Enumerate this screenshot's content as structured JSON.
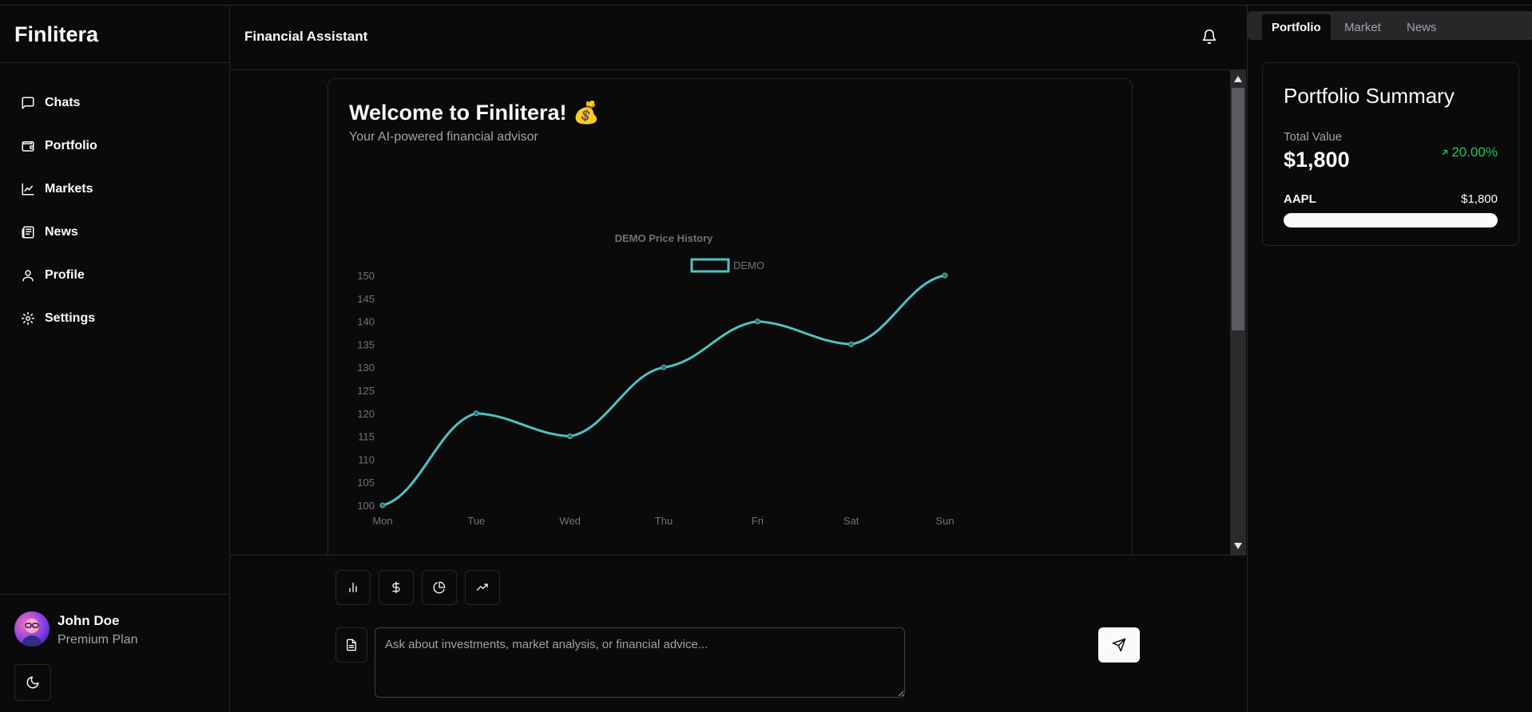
{
  "app": {
    "brand": "Finlitera"
  },
  "sidebar": {
    "items": [
      {
        "label": "Chats",
        "icon": "chat-icon"
      },
      {
        "label": "Portfolio",
        "icon": "wallet-icon"
      },
      {
        "label": "Markets",
        "icon": "chart-line-icon"
      },
      {
        "label": "News",
        "icon": "newspaper-icon"
      },
      {
        "label": "Profile",
        "icon": "user-icon"
      },
      {
        "label": "Settings",
        "icon": "gear-icon"
      }
    ]
  },
  "user": {
    "name": "John Doe",
    "plan": "Premium Plan"
  },
  "header": {
    "title": "Financial Assistant"
  },
  "welcome": {
    "title": "Welcome to Finlitera! 💰",
    "subtitle": "Your AI-powered financial advisor"
  },
  "chart_data": {
    "type": "line",
    "title": "DEMO Price History",
    "categories": [
      "Mon",
      "Tue",
      "Wed",
      "Thu",
      "Fri",
      "Sat",
      "Sun"
    ],
    "series": [
      {
        "name": "DEMO",
        "values": [
          100,
          120,
          115,
          130,
          140,
          135,
          150
        ],
        "color": "#4fc1c0"
      }
    ],
    "ylim": [
      100,
      150
    ],
    "yticks": [
      100,
      105,
      110,
      115,
      120,
      125,
      130,
      135,
      140,
      145,
      150
    ],
    "legend_position": "top"
  },
  "tools": [
    {
      "icon": "bar-chart-icon"
    },
    {
      "icon": "dollar-icon"
    },
    {
      "icon": "pie-chart-icon"
    },
    {
      "icon": "trending-up-icon"
    }
  ],
  "input": {
    "placeholder": "Ask about investments, market analysis, or financial advice..."
  },
  "right_panel": {
    "tabs": [
      "Portfolio",
      "Market",
      "News"
    ],
    "active_tab": "Portfolio",
    "summary": {
      "title": "Portfolio Summary",
      "total_label": "Total Value",
      "total_value": "$1,800",
      "change": "20.00%",
      "change_color": "#22c55e",
      "holdings": [
        {
          "symbol": "AAPL",
          "value": "$1,800",
          "share": 1.0
        }
      ]
    }
  },
  "colors": {
    "background": "#0a0a0b",
    "border": "#27272a",
    "accent_line": "#4fc1c0"
  }
}
